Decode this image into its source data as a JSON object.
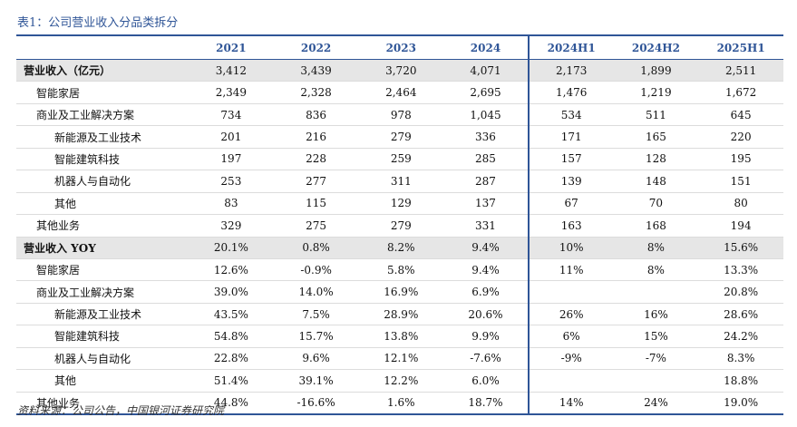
{
  "title": "表1：公司营业收入分品类拆分",
  "columns": [
    "",
    "2021",
    "2022",
    "2023",
    "2024",
    "2024H1",
    "2024H2",
    "2025H1"
  ],
  "revenue_rows": [
    {
      "label": "营业收入（亿元）",
      "level": 0,
      "values": [
        "3,412",
        "3,439",
        "3,720",
        "4,071",
        "2,173",
        "1,899",
        "2,511"
      ]
    },
    {
      "label": "智能家居",
      "level": 1,
      "values": [
        "2,349",
        "2,328",
        "2,464",
        "2,695",
        "1,476",
        "1,219",
        "1,672"
      ]
    },
    {
      "label": "商业及工业解决方案",
      "level": 1,
      "values": [
        "734",
        "836",
        "978",
        "1,045",
        "534",
        "511",
        "645"
      ]
    },
    {
      "label": "新能源及工业技术",
      "level": 2,
      "values": [
        "201",
        "216",
        "279",
        "336",
        "171",
        "165",
        "220"
      ]
    },
    {
      "label": "智能建筑科技",
      "level": 2,
      "values": [
        "197",
        "228",
        "259",
        "285",
        "157",
        "128",
        "195"
      ]
    },
    {
      "label": "机器人与自动化",
      "level": 2,
      "values": [
        "253",
        "277",
        "311",
        "287",
        "139",
        "148",
        "151"
      ]
    },
    {
      "label": "其他",
      "level": 2,
      "values": [
        "83",
        "115",
        "129",
        "137",
        "67",
        "70",
        "80"
      ]
    },
    {
      "label": "其他业务",
      "level": 1,
      "values": [
        "329",
        "275",
        "279",
        "331",
        "163",
        "168",
        "194"
      ]
    }
  ],
  "yoy_rows": [
    {
      "label": "营业收入 YOY",
      "level": 0,
      "values": [
        "20.1%",
        "0.8%",
        "8.2%",
        "9.4%",
        "10%",
        "8%",
        "15.6%"
      ]
    },
    {
      "label": "智能家居",
      "level": 1,
      "values": [
        "12.6%",
        "-0.9%",
        "5.8%",
        "9.4%",
        "11%",
        "8%",
        "13.3%"
      ]
    },
    {
      "label": "商业及工业解决方案",
      "level": 1,
      "values": [
        "39.0%",
        "14.0%",
        "16.9%",
        "6.9%",
        "",
        "",
        "20.8%"
      ]
    },
    {
      "label": "新能源及工业技术",
      "level": 2,
      "values": [
        "43.5%",
        "7.5%",
        "28.9%",
        "20.6%",
        "26%",
        "16%",
        "28.6%"
      ]
    },
    {
      "label": "智能建筑科技",
      "level": 2,
      "values": [
        "54.8%",
        "15.7%",
        "13.8%",
        "9.9%",
        "6%",
        "15%",
        "24.2%"
      ]
    },
    {
      "label": "机器人与自动化",
      "level": 2,
      "values": [
        "22.8%",
        "9.6%",
        "12.1%",
        "-7.6%",
        "-9%",
        "-7%",
        "8.3%"
      ]
    },
    {
      "label": "其他",
      "level": 2,
      "values": [
        "51.4%",
        "39.1%",
        "12.2%",
        "6.0%",
        "",
        "",
        "18.8%"
      ]
    },
    {
      "label": "其他业务",
      "level": 1,
      "values": [
        "44.8%",
        "-16.6%",
        "1.6%",
        "18.7%",
        "14%",
        "24%",
        "19.0%"
      ]
    }
  ],
  "source": "资料来源：公司公告，中国银河证券研究院"
}
